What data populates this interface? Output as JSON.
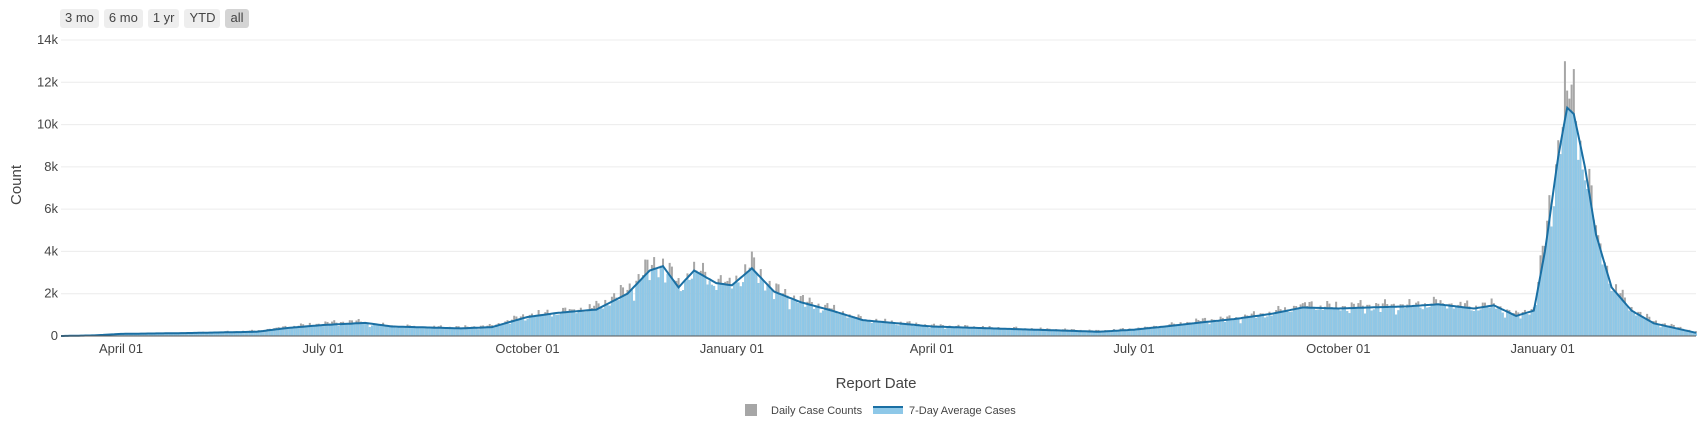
{
  "range_selector": {
    "buttons": [
      {
        "label": "3 mo",
        "active": false
      },
      {
        "label": "6 mo",
        "active": false
      },
      {
        "label": "1 yr",
        "active": false
      },
      {
        "label": "YTD",
        "active": false
      },
      {
        "label": "all",
        "active": true
      }
    ]
  },
  "colors": {
    "bars_daily": "#a6a6a6",
    "bars_avg_fill": "#8ec8e8",
    "avg_line": "#1a6fa3",
    "grid": "#ececec",
    "axis": "#555555"
  },
  "chart_data": {
    "type": "bar",
    "xlabel": "Report Date",
    "ylabel": "Count",
    "ylim": [
      0,
      14000
    ],
    "yticks": [
      0,
      2000,
      4000,
      6000,
      8000,
      10000,
      12000,
      14000
    ],
    "ytick_labels": [
      "0",
      "2k",
      "4k",
      "6k",
      "8k",
      "10k",
      "12k",
      "14k"
    ],
    "xlim": [
      "2020-03-05",
      "2022-03-11"
    ],
    "xticks": [
      "2020-04-01",
      "2020-07-01",
      "2020-10-01",
      "2021-01-01",
      "2021-04-01",
      "2021-07-01",
      "2021-10-01",
      "2022-01-01"
    ],
    "xtick_labels": [
      "April 01",
      "July 01",
      "October 01",
      "January 01",
      "April 01",
      "July 01",
      "October 01",
      "January 01"
    ],
    "grid": true,
    "legend_position": "bottom-center",
    "series": [
      {
        "name": "Daily Case Counts",
        "kind": "bar",
        "keypoints": [
          [
            "2020-03-05",
            0
          ],
          [
            "2020-03-20",
            40
          ],
          [
            "2020-04-01",
            110
          ],
          [
            "2020-05-01",
            150
          ],
          [
            "2020-06-01",
            250
          ],
          [
            "2020-06-15",
            450
          ],
          [
            "2020-07-01",
            600
          ],
          [
            "2020-07-15",
            700
          ],
          [
            "2020-08-01",
            470
          ],
          [
            "2020-09-01",
            420
          ],
          [
            "2020-09-15",
            480
          ],
          [
            "2020-10-01",
            1000
          ],
          [
            "2020-10-15",
            1150
          ],
          [
            "2020-11-01",
            1400
          ],
          [
            "2020-11-15",
            2200
          ],
          [
            "2020-11-25",
            3300
          ],
          [
            "2020-12-01",
            3500
          ],
          [
            "2020-12-08",
            2400
          ],
          [
            "2020-12-15",
            3200
          ],
          [
            "2020-12-25",
            2600
          ],
          [
            "2021-01-01",
            2500
          ],
          [
            "2021-01-10",
            3400
          ],
          [
            "2021-01-20",
            2200
          ],
          [
            "2021-02-01",
            1700
          ],
          [
            "2021-02-15",
            1300
          ],
          [
            "2021-03-01",
            800
          ],
          [
            "2021-04-01",
            500
          ],
          [
            "2021-05-01",
            400
          ],
          [
            "2021-06-01",
            300
          ],
          [
            "2021-06-15",
            250
          ],
          [
            "2021-07-01",
            350
          ],
          [
            "2021-07-15",
            500
          ],
          [
            "2021-08-01",
            750
          ],
          [
            "2021-08-15",
            850
          ],
          [
            "2021-09-01",
            1100
          ],
          [
            "2021-09-15",
            1500
          ],
          [
            "2021-10-01",
            1400
          ],
          [
            "2021-10-15",
            1450
          ],
          [
            "2021-11-01",
            1450
          ],
          [
            "2021-11-15",
            1600
          ],
          [
            "2021-12-01",
            1400
          ],
          [
            "2021-12-10",
            1500
          ],
          [
            "2021-12-20",
            1000
          ],
          [
            "2021-12-28",
            1300
          ],
          [
            "2022-01-02",
            4500
          ],
          [
            "2022-01-08",
            9000
          ],
          [
            "2022-01-12",
            12000
          ],
          [
            "2022-01-15",
            11000
          ],
          [
            "2022-01-20",
            8500
          ],
          [
            "2022-01-25",
            5000
          ],
          [
            "2022-02-01",
            2500
          ],
          [
            "2022-02-10",
            1300
          ],
          [
            "2022-02-20",
            700
          ],
          [
            "2022-03-11",
            200
          ]
        ]
      },
      {
        "name": "7-Day Average Cases",
        "kind": "line",
        "keypoints": [
          [
            "2020-03-05",
            0
          ],
          [
            "2020-03-20",
            30
          ],
          [
            "2020-04-01",
            100
          ],
          [
            "2020-05-01",
            140
          ],
          [
            "2020-06-01",
            200
          ],
          [
            "2020-06-15",
            380
          ],
          [
            "2020-07-01",
            520
          ],
          [
            "2020-07-20",
            620
          ],
          [
            "2020-08-01",
            450
          ],
          [
            "2020-09-01",
            360
          ],
          [
            "2020-09-15",
            420
          ],
          [
            "2020-10-01",
            900
          ],
          [
            "2020-10-15",
            1100
          ],
          [
            "2020-11-01",
            1250
          ],
          [
            "2020-11-15",
            2000
          ],
          [
            "2020-11-25",
            3100
          ],
          [
            "2020-12-01",
            3300
          ],
          [
            "2020-12-08",
            2300
          ],
          [
            "2020-12-15",
            3100
          ],
          [
            "2020-12-25",
            2500
          ],
          [
            "2021-01-01",
            2400
          ],
          [
            "2021-01-10",
            3200
          ],
          [
            "2021-01-20",
            2100
          ],
          [
            "2021-02-01",
            1600
          ],
          [
            "2021-02-15",
            1200
          ],
          [
            "2021-03-01",
            750
          ],
          [
            "2021-04-01",
            450
          ],
          [
            "2021-05-01",
            350
          ],
          [
            "2021-06-01",
            250
          ],
          [
            "2021-06-15",
            200
          ],
          [
            "2021-07-01",
            300
          ],
          [
            "2021-07-15",
            450
          ],
          [
            "2021-08-01",
            650
          ],
          [
            "2021-08-15",
            800
          ],
          [
            "2021-09-01",
            1050
          ],
          [
            "2021-09-15",
            1350
          ],
          [
            "2021-10-01",
            1300
          ],
          [
            "2021-10-15",
            1350
          ],
          [
            "2021-11-01",
            1400
          ],
          [
            "2021-11-15",
            1500
          ],
          [
            "2021-12-01",
            1300
          ],
          [
            "2021-12-10",
            1450
          ],
          [
            "2021-12-20",
            950
          ],
          [
            "2021-12-28",
            1200
          ],
          [
            "2022-01-02",
            4000
          ],
          [
            "2022-01-08",
            8500
          ],
          [
            "2022-01-12",
            10800
          ],
          [
            "2022-01-15",
            10500
          ],
          [
            "2022-01-20",
            8000
          ],
          [
            "2022-01-25",
            4800
          ],
          [
            "2022-02-01",
            2300
          ],
          [
            "2022-02-10",
            1200
          ],
          [
            "2022-02-20",
            600
          ],
          [
            "2022-03-11",
            150
          ]
        ]
      }
    ]
  }
}
